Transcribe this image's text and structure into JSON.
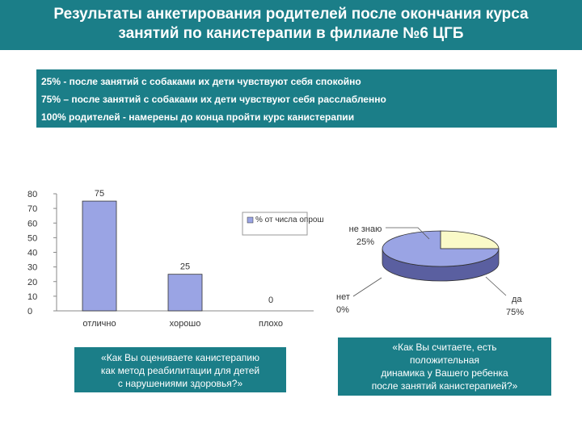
{
  "header": {
    "title_line1": "Результаты анкетирования родителей после окончания курса",
    "title_line2": "занятий по канистерапии в филиале №6 ЦГБ"
  },
  "summary": {
    "line1": "25% - после занятий с собаками их дети чувствуют себя спокойно",
    "line2": "75% – после занятий с собаками их дети чувствуют себя расслабленно",
    "line3": "100% родителей - намерены до конца пройти курс канистерапии"
  },
  "colors": {
    "header_bg": "#1b7e88",
    "bar_fill": "#9aa4e4",
    "pie_main": "#9aa4e4",
    "pie_minor": "#fafac8"
  },
  "chart_data": [
    {
      "type": "bar",
      "categories": [
        "отлично",
        "хорошо",
        "плохо"
      ],
      "series": [
        {
          "name": "% от числа опрошенных",
          "values": [
            75,
            25,
            0
          ]
        }
      ],
      "data_labels": [
        "75",
        "25",
        "0"
      ],
      "y_ticks": [
        "0",
        "10",
        "20",
        "30",
        "40",
        "50",
        "60",
        "70",
        "80"
      ],
      "ylim": [
        0,
        80
      ],
      "grid": false,
      "legend": "top-right",
      "caption_lines": [
        "«Как Вы оцениваете канистерапию",
        "как метод реабилитации для детей",
        "с нарушениями здоровья?»"
      ]
    },
    {
      "type": "pie",
      "slices": [
        {
          "label": "да",
          "value": 75,
          "value_label": "75%"
        },
        {
          "label": "не знаю",
          "value": 25,
          "value_label": "25%"
        },
        {
          "label": "нет",
          "value": 0,
          "value_label": "0%"
        }
      ],
      "caption_lines": [
        "«Как Вы считаете, есть",
        "положительная",
        "динамика у Вашего ребенка",
        "после занятий канистерапией?»"
      ]
    }
  ]
}
